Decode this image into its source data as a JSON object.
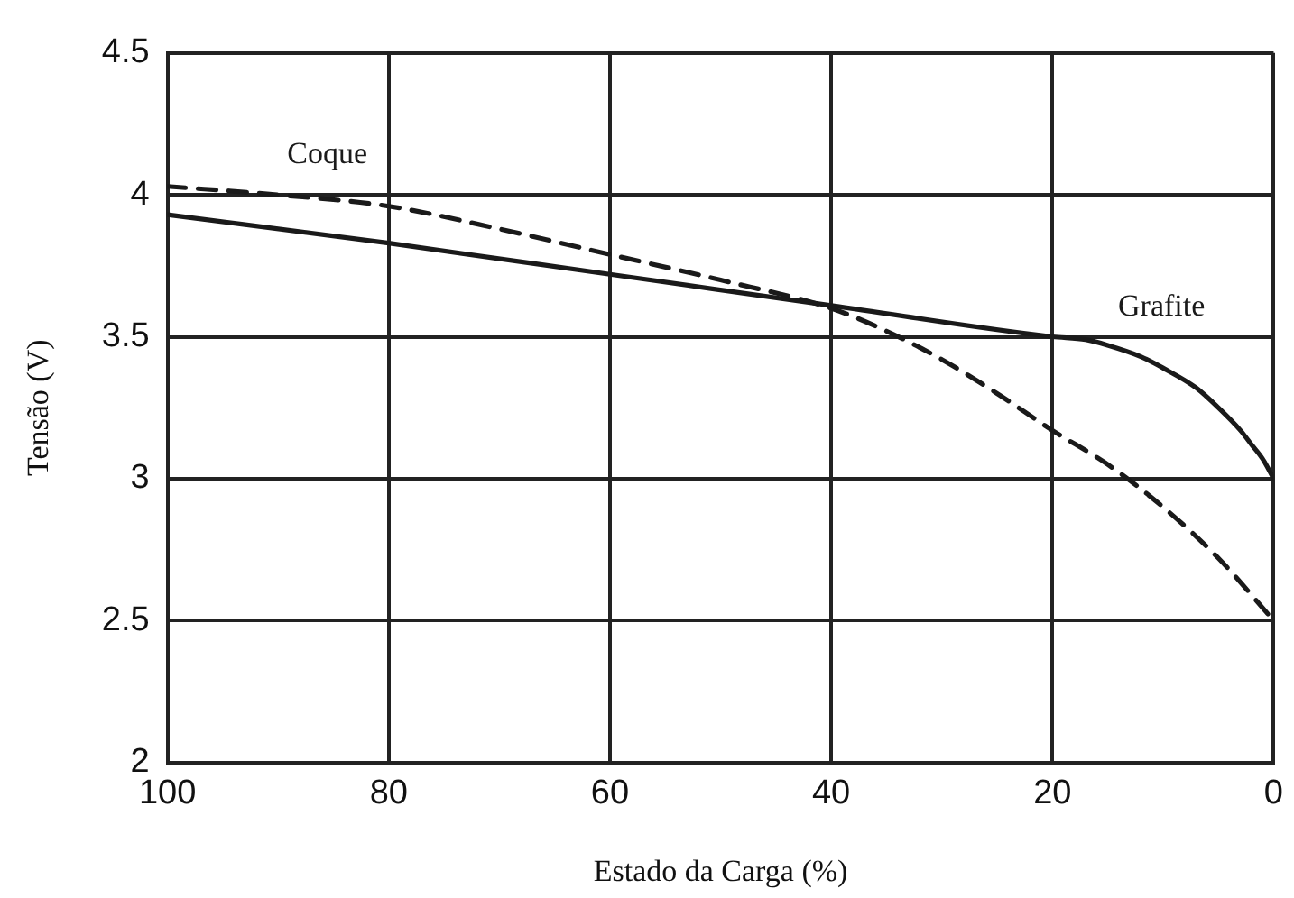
{
  "chart_data": {
    "type": "line",
    "xlabel": "Estado da Carga (%)",
    "ylabel": "Tensão (V)",
    "xlim": [
      100,
      0
    ],
    "xticks": [
      100,
      80,
      60,
      40,
      20,
      0
    ],
    "ylim": [
      2,
      4.5
    ],
    "yticks": [
      2,
      2.5,
      3,
      3.5,
      4,
      4.5
    ],
    "grid": true,
    "legend": false,
    "marker": "none",
    "series": [
      {
        "name": "Grafite",
        "color": "#1a1a1a",
        "line_style": "solid",
        "x": [
          100,
          80,
          60,
          40,
          20,
          17,
          15,
          12,
          10,
          7,
          5,
          3,
          2,
          1,
          0
        ],
        "values": [
          3.93,
          3.83,
          3.72,
          3.61,
          3.5,
          3.49,
          3.47,
          3.43,
          3.39,
          3.32,
          3.25,
          3.17,
          3.12,
          3.07,
          3.0
        ]
      },
      {
        "name": "Coque",
        "color": "#1a1a1a",
        "line_style": "dashed",
        "x": [
          100,
          90,
          80,
          70,
          60,
          50,
          40,
          35,
          30,
          25,
          20,
          15,
          10,
          5,
          0
        ],
        "values": [
          4.03,
          4.0,
          3.96,
          3.88,
          3.79,
          3.7,
          3.6,
          3.52,
          3.42,
          3.3,
          3.17,
          3.05,
          2.9,
          2.72,
          2.5
        ]
      }
    ]
  }
}
